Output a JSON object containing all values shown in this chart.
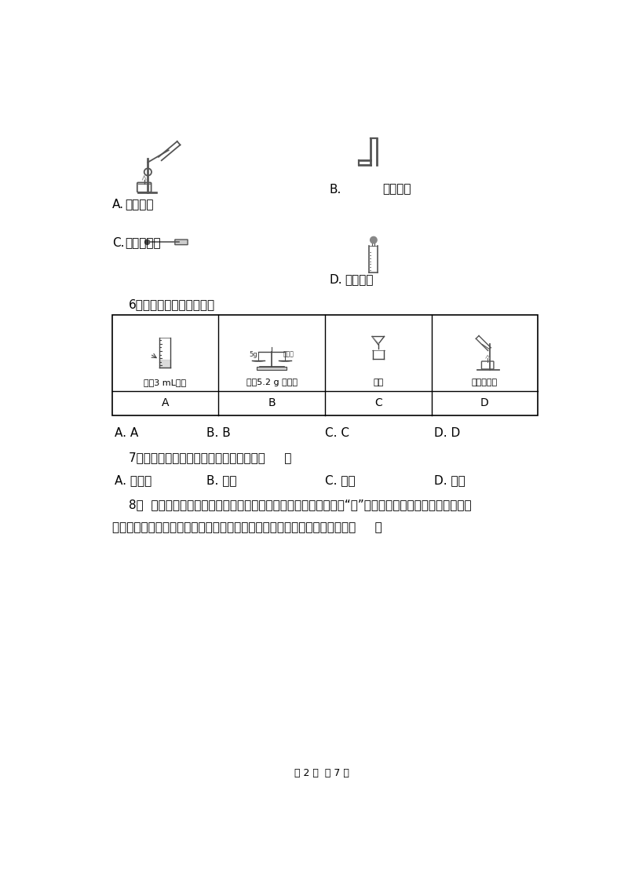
{
  "bg_color": "#ffffff",
  "text_color": "#000000",
  "page_width": 8.0,
  "page_height": 11.32,
  "footer_text": "第 2 页  共 7 页",
  "q6_text": "6．下列实验操作正确的是",
  "q7_text": "7．能直接在酒精灯上加热的玻璃仪器是（     ）",
  "q7_options": [
    "A. 蒸发皿",
    "B. 试管",
    "C. 烧杯",
    "D. 坟埚"
  ],
  "q8_line1": "8．  我们东北的美在于它寒冷中的火热，而当之无愧的主角自然是“雪”了。你在欣赏美丽的雪景时，是否",
  "q8_line2": "仔细观察过雪花的形状呢。它没有两片完全相同的，下列有关说法正确的是（     ）",
  "q6_options_row1": [
    "A. A",
    "B. B",
    "C. C",
    "D. D"
  ],
  "caption_A": "加热液体",
  "caption_B": "收集气体",
  "caption_C": "加固体粉末",
  "caption_D": "滴加液体",
  "table_captions": [
    "量南3 mL液体",
    "称量5.2 g 氧化铜",
    "过滤",
    "给液体加热"
  ],
  "table_row2": [
    "A",
    "B",
    "C",
    "D"
  ]
}
